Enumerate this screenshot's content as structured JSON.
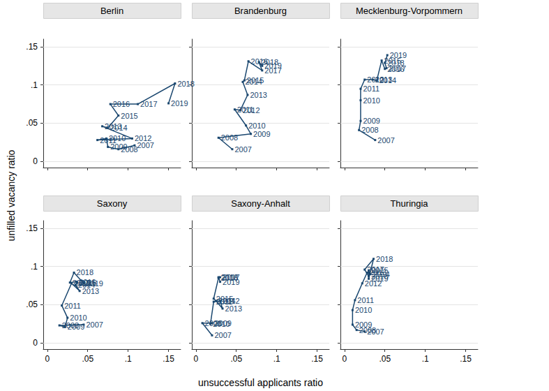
{
  "chart_data": {
    "type": "line",
    "marker": "square",
    "color": "#1a476f",
    "grid": true,
    "x_label": "unsuccessful applicants ratio",
    "y_label": "unfilled vacancy ratio",
    "xlim": [
      -0.005,
      0.165
    ],
    "ylim": [
      -0.008,
      0.16
    ],
    "xticks": [
      0,
      {
        "value": 0.05,
        "label": ".05"
      },
      {
        "value": 0.1,
        "label": ".1"
      },
      {
        "value": 0.15,
        "label": ".15"
      }
    ],
    "yticks": [
      0,
      {
        "value": 0.05,
        "label": ".05"
      },
      {
        "value": 0.1,
        "label": ".1"
      },
      {
        "value": 0.15,
        "label": ".15"
      }
    ],
    "panels": [
      {
        "title": "Berlin",
        "years": [
          2007,
          2008,
          2009,
          2010,
          2011,
          2012,
          2013,
          2014,
          2015,
          2016,
          2017,
          2018,
          2019
        ],
        "x": [
          0.108,
          0.088,
          0.075,
          0.073,
          0.062,
          0.105,
          0.068,
          0.075,
          0.088,
          0.078,
          0.112,
          0.158,
          0.15
        ],
        "values": [
          0.021,
          0.016,
          0.019,
          0.03,
          0.028,
          0.03,
          0.046,
          0.044,
          0.06,
          0.075,
          0.075,
          0.102,
          0.076
        ]
      },
      {
        "title": "Brandenburg",
        "years": [
          2007,
          2008,
          2009,
          2010,
          2011,
          2012,
          2013,
          2014,
          2015,
          2016,
          2017,
          2018,
          2019
        ],
        "x": [
          0.045,
          0.028,
          0.068,
          0.062,
          0.048,
          0.055,
          0.064,
          0.058,
          0.06,
          0.065,
          0.082,
          0.078,
          0.082
        ],
        "values": [
          0.016,
          0.031,
          0.036,
          0.047,
          0.068,
          0.067,
          0.087,
          0.104,
          0.106,
          0.131,
          0.119,
          0.13,
          0.125
        ]
      },
      {
        "title": "Mecklenburg-Vorpommern",
        "years": [
          2007,
          2008,
          2009,
          2010,
          2011,
          2012,
          2013,
          2014,
          2015,
          2016,
          2017,
          2018,
          2019
        ],
        "x": [
          0.038,
          0.018,
          0.02,
          0.02,
          0.02,
          0.025,
          0.035,
          0.04,
          0.046,
          0.05,
          0.052,
          0.05,
          0.053
        ],
        "values": [
          0.028,
          0.041,
          0.053,
          0.08,
          0.095,
          0.107,
          0.107,
          0.106,
          0.132,
          0.121,
          0.122,
          0.129,
          0.139
        ]
      },
      {
        "title": "Saxony",
        "years": [
          2007,
          2008,
          2009,
          2010,
          2011,
          2012,
          2013,
          2014,
          2015,
          2016,
          2017,
          2018,
          2019
        ],
        "x": [
          0.045,
          0.015,
          0.022,
          0.025,
          0.018,
          0.03,
          0.04,
          0.035,
          0.037,
          0.036,
          0.028,
          0.033,
          0.045
        ],
        "values": [
          0.024,
          0.023,
          0.021,
          0.033,
          0.049,
          0.078,
          0.068,
          0.076,
          0.079,
          0.08,
          0.079,
          0.092,
          0.078
        ]
      },
      {
        "title": "Saxony-Anhalt",
        "years": [
          2007,
          2008,
          2009,
          2010,
          2011,
          2012,
          2013,
          2014,
          2015,
          2016,
          2017,
          2018,
          2019
        ],
        "x": [
          0.02,
          0.008,
          0.02,
          0.018,
          0.022,
          0.03,
          0.033,
          0.025,
          0.022,
          0.028,
          0.03,
          0.028,
          0.03
        ],
        "values": [
          0.01,
          0.026,
          0.026,
          0.025,
          0.054,
          0.055,
          0.045,
          0.055,
          0.058,
          0.085,
          0.086,
          0.086,
          0.08
        ]
      },
      {
        "title": "Thuringia",
        "years": [
          2007,
          2008,
          2009,
          2010,
          2011,
          2012,
          2013,
          2014,
          2015,
          2016,
          2017,
          2018,
          2019
        ],
        "x": [
          0.025,
          0.015,
          0.01,
          0.01,
          0.013,
          0.022,
          0.028,
          0.032,
          0.03,
          0.03,
          0.025,
          0.036,
          0.03
        ],
        "values": [
          0.015,
          0.017,
          0.024,
          0.043,
          0.056,
          0.078,
          0.092,
          0.09,
          0.095,
          0.087,
          0.096,
          0.11,
          0.084
        ]
      }
    ]
  }
}
